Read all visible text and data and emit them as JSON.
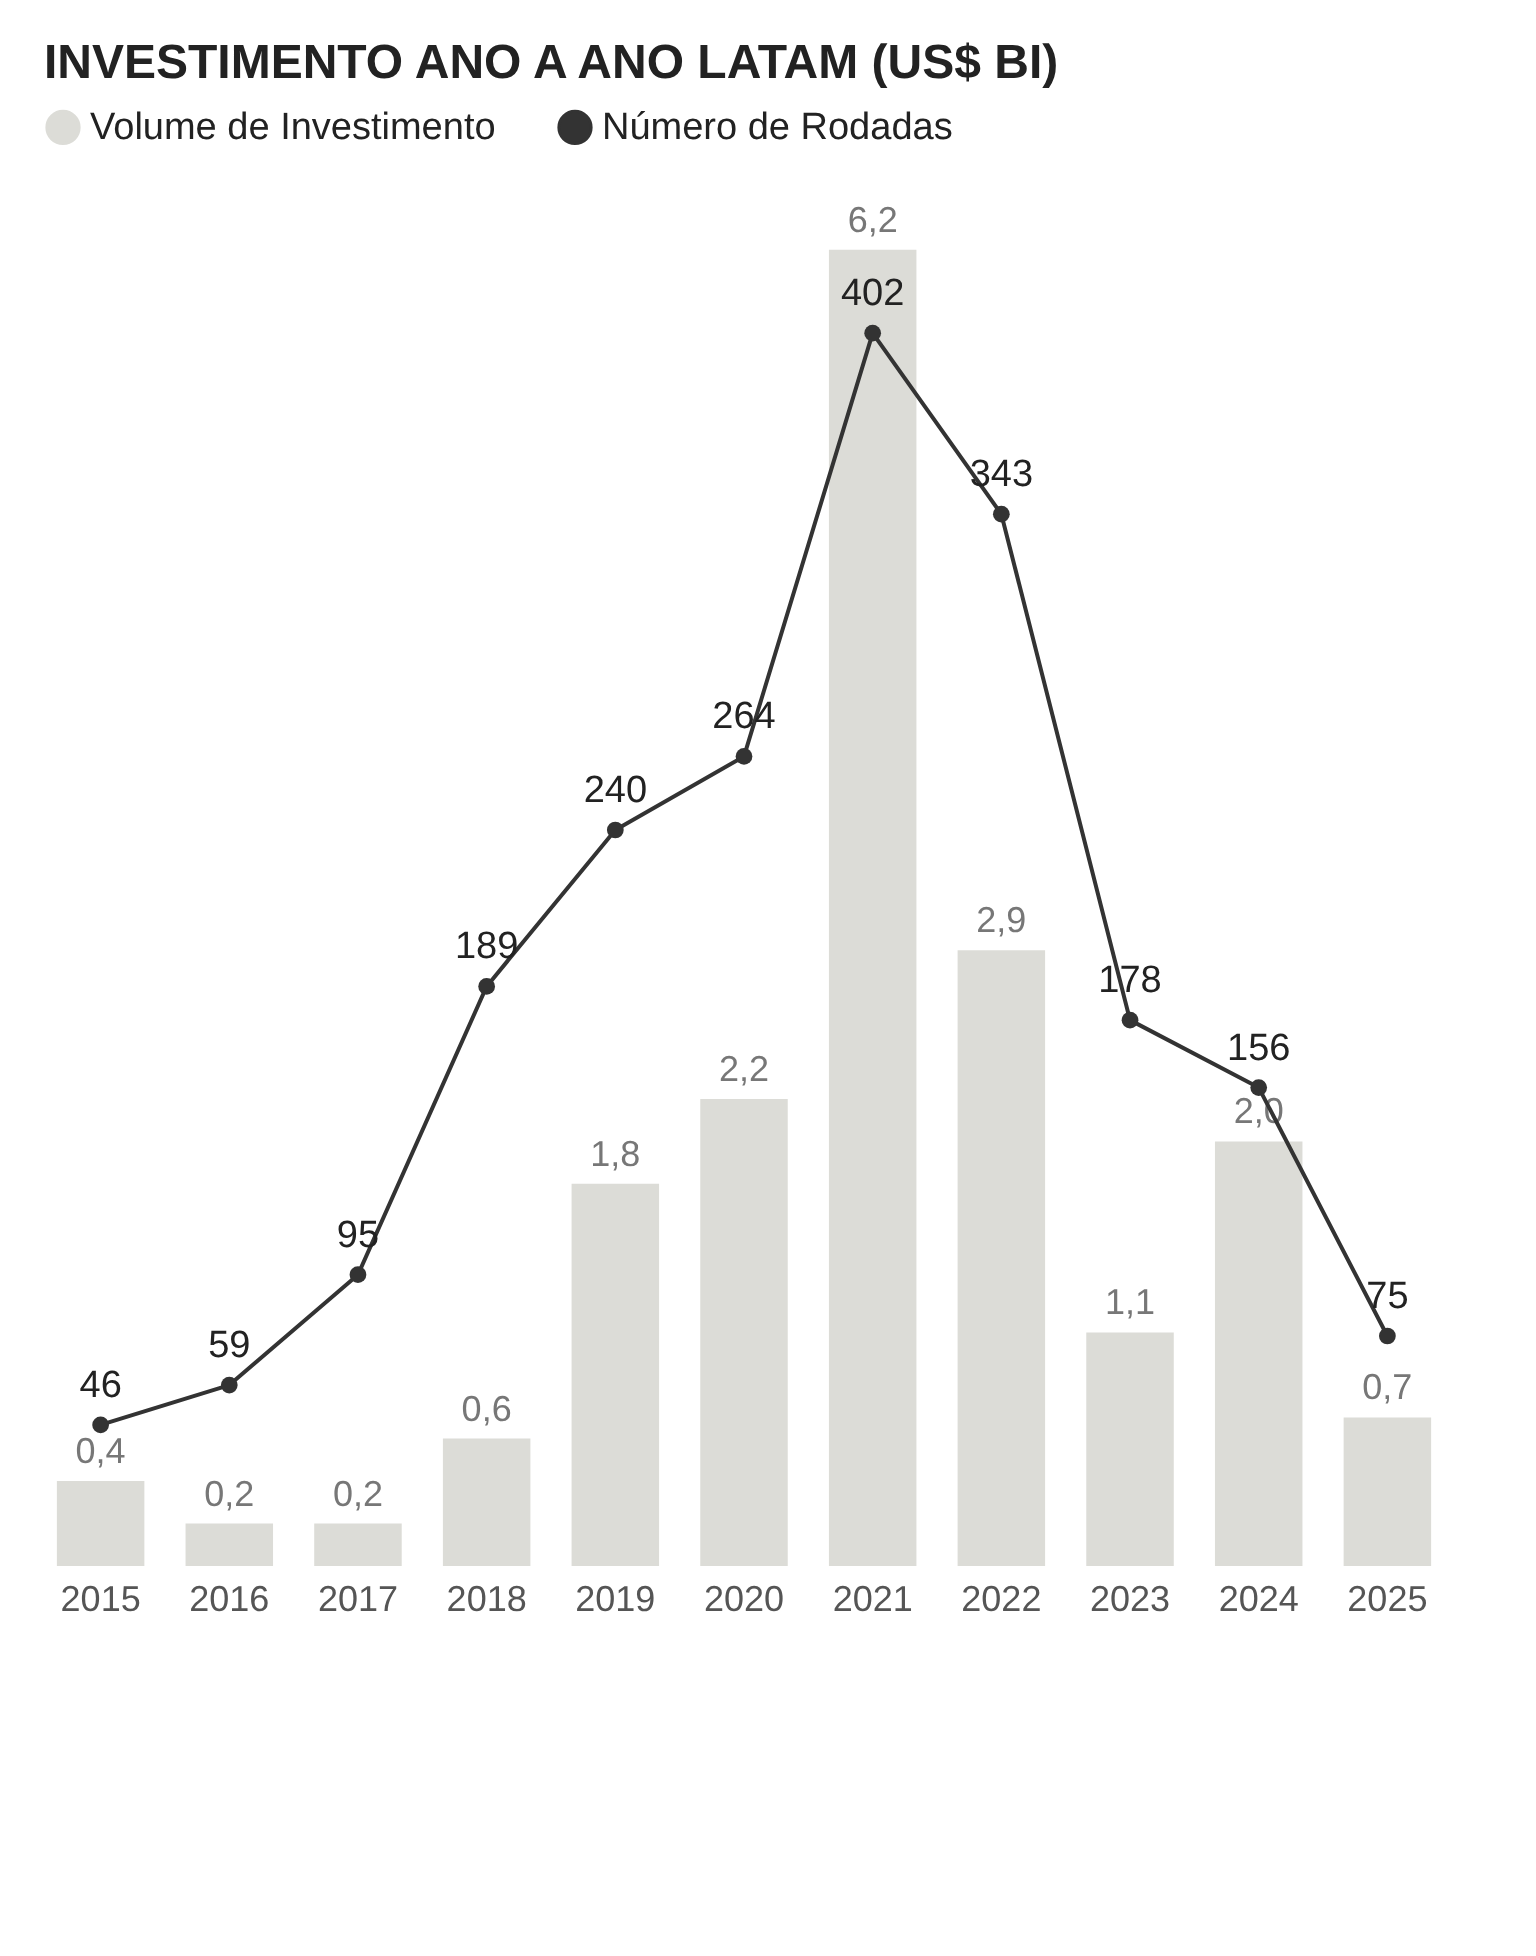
{
  "chart_data": {
    "type": "bar",
    "title": "INVESTIMENTO ANO A ANO LATAM (US$ BI)",
    "categories": [
      "2015",
      "2016",
      "2017",
      "2018",
      "2019",
      "2020",
      "2021",
      "2022",
      "2023",
      "2024",
      "2025"
    ],
    "series": [
      {
        "name": "Volume de Investimento",
        "color": "#dcdcd7",
        "values": [
          0.4,
          0.2,
          0.2,
          0.6,
          1.8,
          2.2,
          6.2,
          2.9,
          1.1,
          2.0,
          0.7
        ],
        "value_labels": [
          "0,4",
          "0,2",
          "0,2",
          "0,6",
          "1,8",
          "2,2",
          "6,2",
          "2,9",
          "1,1",
          "2,0",
          "0,7"
        ]
      },
      {
        "name": "Número de Rodadas",
        "type": "line",
        "axis": "y2",
        "color": "#333333",
        "values": [
          46,
          59,
          95,
          189,
          240,
          264,
          402,
          343,
          178,
          156,
          75
        ]
      }
    ],
    "data_labels": true,
    "legend": "top left",
    "marker": "circle",
    "tick_labels": "x"
  }
}
